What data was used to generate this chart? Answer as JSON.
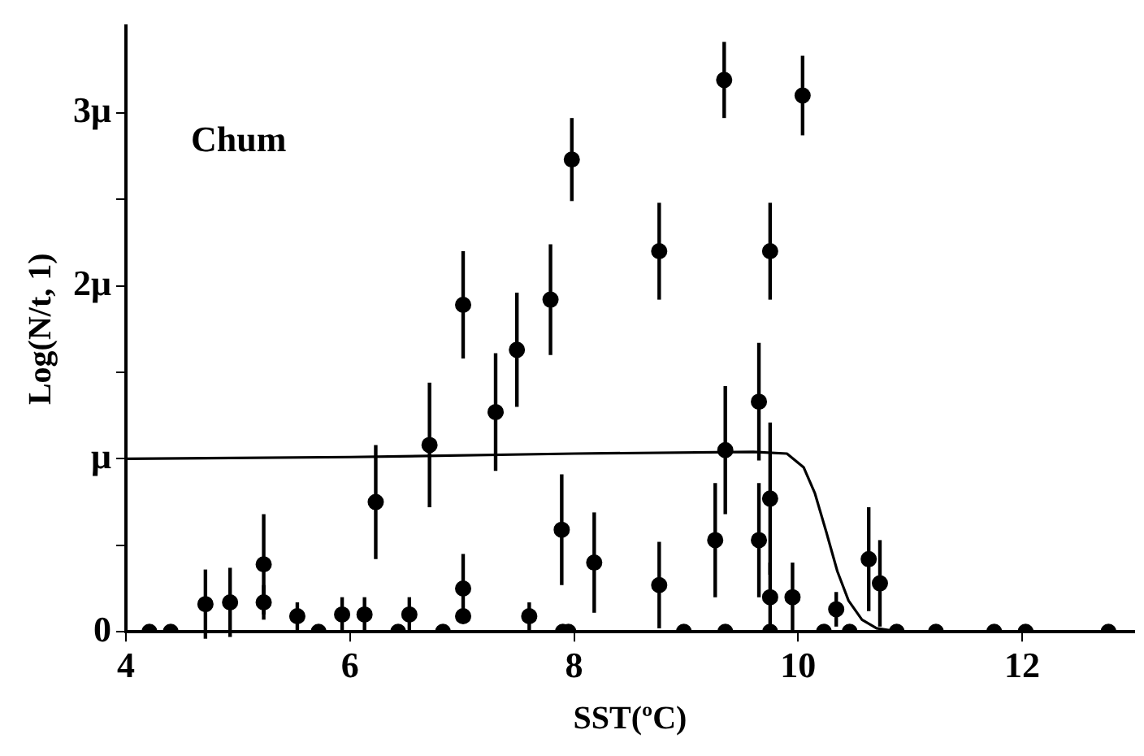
{
  "chart_data": {
    "type": "scatter",
    "xlabel": "SST(ºC)",
    "ylabel": "Log(N/t, 1)",
    "annotations": [
      "Chum"
    ],
    "xlim": [
      4,
      13
    ],
    "xticks": [
      4,
      6,
      8,
      10,
      12
    ],
    "ylim": [
      0,
      3.5
    ],
    "yticks": [
      0,
      {
        "value": 0.5,
        "label": null
      },
      {
        "value": 1,
        "label": "μ"
      },
      {
        "value": 1.5,
        "label": null
      },
      {
        "value": 2,
        "label": "2μ"
      },
      {
        "value": 2.5,
        "label": null
      },
      {
        "value": 3,
        "label": "3μ"
      }
    ],
    "series": [
      {
        "color": "#000000",
        "marker": "circle",
        "x": [
          4.21,
          4.4,
          4.71,
          4.93,
          5.23,
          5.23,
          5.53,
          5.72,
          5.93,
          6.13,
          6.23,
          6.43,
          6.53,
          6.71,
          6.83,
          7.01,
          7.01,
          7.01,
          7.3,
          7.49,
          7.6,
          7.79,
          7.89,
          7.98,
          7.9,
          7.95,
          8.18,
          8.76,
          8.76,
          8.98,
          9.34,
          9.26,
          9.35,
          9.35,
          9.65,
          9.65,
          9.75,
          9.75,
          9.75,
          9.75,
          10.04,
          9.95,
          10.23,
          10.34,
          10.46,
          10.63,
          10.73,
          10.88,
          11.23,
          11.75,
          12.03,
          12.77
        ],
        "values": [
          0,
          0,
          0.16,
          0.17,
          0.39,
          0.17,
          0.09,
          0,
          0.1,
          0.1,
          0.75,
          0,
          0.1,
          1.08,
          0,
          1.89,
          0.25,
          0.09,
          1.27,
          1.63,
          0.09,
          1.92,
          0.59,
          2.73,
          0,
          0,
          0.4,
          2.2,
          0.27,
          0,
          3.19,
          0.53,
          1.05,
          0,
          1.33,
          0.53,
          2.2,
          0.77,
          0.2,
          0,
          3.1,
          0.2,
          0,
          0.13,
          0,
          0.42,
          0.28,
          0,
          0,
          0,
          0,
          0
        ],
        "errors": [
          null,
          null,
          0.2,
          0.2,
          0.29,
          0.1,
          0.08,
          null,
          0.1,
          0.1,
          0.33,
          null,
          0.1,
          0.36,
          null,
          0.31,
          0.2,
          null,
          0.34,
          0.33,
          0.08,
          0.32,
          0.32,
          0.24,
          null,
          null,
          0.29,
          0.28,
          0.25,
          null,
          0.22,
          0.33,
          0.37,
          null,
          0.34,
          0.33,
          0.28,
          0.44,
          0.2,
          null,
          0.23,
          0.2,
          null,
          0.1,
          null,
          0.3,
          0.25,
          null,
          null,
          null,
          null,
          null
        ]
      },
      {
        "type": "line",
        "color": "#000000",
        "marker": "none",
        "line_style": "solid",
        "x": [
          4,
          6,
          8,
          9.6,
          9.9,
          10.05,
          10.15,
          10.25,
          10.35,
          10.45,
          10.57,
          10.7,
          10.9,
          13
        ],
        "values": [
          1,
          1.01,
          1.03,
          1.04,
          1.03,
          0.95,
          0.8,
          0.58,
          0.35,
          0.18,
          0.07,
          0.02,
          0,
          0
        ]
      }
    ]
  }
}
